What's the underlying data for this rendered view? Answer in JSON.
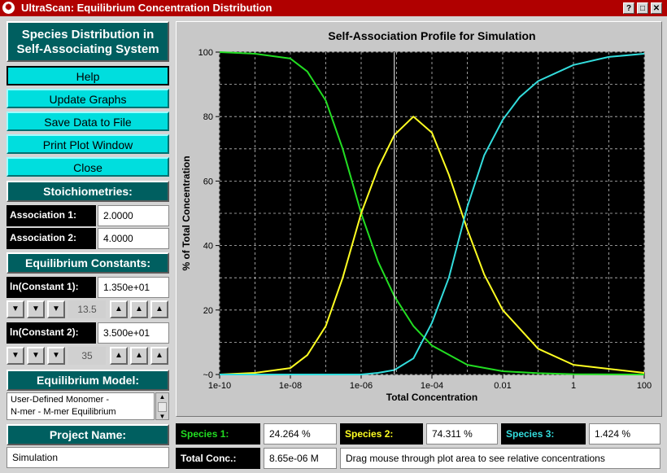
{
  "window": {
    "title": "UltraScan: Equilibrium Concentration Distribution",
    "controls": [
      "?",
      "□",
      "✕"
    ]
  },
  "sidebar": {
    "heading_line1": "Species Distribution in",
    "heading_line2": "Self-Associating System",
    "buttons": {
      "help": "Help",
      "update": "Update Graphs",
      "save": "Save Data to File",
      "print": "Print Plot Window",
      "close": "Close"
    },
    "stoichiometries": {
      "header": "Stoichiometries:",
      "assoc1_label": "Association 1:",
      "assoc1_value": "2.0000",
      "assoc2_label": "Association 2:",
      "assoc2_value": "4.0000"
    },
    "constants": {
      "header": "Equilibrium Constants:",
      "k1_label": "ln(Constant 1):",
      "k1_value": "1.350e+01",
      "k1_counter": "13.5",
      "k2_label": "ln(Constant 2):",
      "k2_value": "3.500e+01",
      "k2_counter": "35"
    },
    "model": {
      "header": "Equilibrium Model:",
      "line1": "User-Defined Monomer -",
      "line2": "N-mer - M-mer Equilibrium"
    },
    "project": {
      "header": "Project Name:",
      "value": "Simulation"
    }
  },
  "status": {
    "species1_label": "Species 1:",
    "species1_value": "24.264 %",
    "species2_label": "Species 2:",
    "species2_value": "74.311 %",
    "species3_label": "Species 3:",
    "species3_value": "1.424 %",
    "total_label": "Total Conc.:",
    "total_value": "8.65e-06 M",
    "hint": "Drag mouse through plot area to see relative concentrations"
  },
  "colors": {
    "species1": "#22dd22",
    "species2": "#ffff22",
    "species3": "#33dddd",
    "accent": "#005f60",
    "button": "#00dede",
    "titlebar": "#b00000"
  },
  "chart_data": {
    "type": "line",
    "title": "Self-Association Profile for Simulation",
    "xlabel": "Total Concentration",
    "ylabel": "% of Total Concentration",
    "xscale": "log",
    "xlim": [
      1e-10,
      100
    ],
    "ylim": [
      0,
      100
    ],
    "xticks": [
      "1e-10",
      "1e-08",
      "1e-06",
      "1e-04",
      "0.01",
      "1",
      "100"
    ],
    "yticks": [
      "100",
      "80",
      "60",
      "40",
      "20",
      "~0"
    ],
    "grid": true,
    "cursor_x": 8.65e-06,
    "series": [
      {
        "color": "#22dd22",
        "x": [
          1e-10,
          1e-09,
          1e-08,
          3e-08,
          1e-07,
          3e-07,
          1e-06,
          3e-06,
          8.65e-06,
          3e-05,
          0.0001,
          0.001,
          0.01,
          0.1,
          1,
          100
        ],
        "values": [
          100,
          99.5,
          98,
          94,
          85,
          70,
          50,
          35,
          24.3,
          15,
          9,
          3,
          1,
          0.4,
          0.1,
          0
        ]
      },
      {
        "color": "#ffff22",
        "x": [
          1e-10,
          1e-09,
          1e-08,
          3e-08,
          1e-07,
          3e-07,
          1e-06,
          3e-06,
          8.65e-06,
          3e-05,
          0.0001,
          0.0003,
          0.001,
          0.003,
          0.01,
          0.1,
          1,
          100
        ],
        "values": [
          0,
          0.5,
          2,
          6,
          15,
          30,
          50,
          64,
          74.3,
          80,
          75,
          62,
          45,
          31,
          20,
          8,
          3,
          0.5
        ]
      },
      {
        "color": "#33dddd",
        "x": [
          1e-10,
          1e-06,
          3e-06,
          8.65e-06,
          3e-05,
          0.0001,
          0.0003,
          0.001,
          0.003,
          0.01,
          0.03,
          0.1,
          1,
          10,
          100
        ],
        "values": [
          0,
          0,
          0.5,
          1.4,
          5,
          16,
          30,
          52,
          68,
          79,
          86,
          91,
          96,
          98.5,
          99.5
        ]
      }
    ]
  }
}
